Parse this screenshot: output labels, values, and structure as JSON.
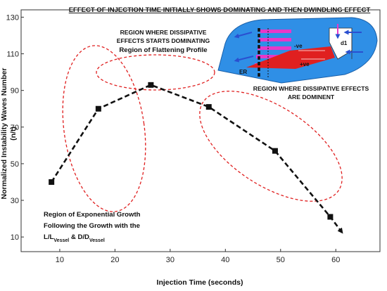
{
  "chart_data": {
    "type": "line",
    "title": "EFFECT OF INJECTION TIME INITIALLY SHOWS DOMINATING AND THEN DWINDLING EFFECT",
    "xlabel": "Injection Time (seconds)",
    "ylabel_line1": "Normalized Instability Waves Number",
    "ylabel_line2": "(n/t)",
    "xlim": [
      3,
      68
    ],
    "ylim": [
      2,
      134
    ],
    "x_ticks": [
      10,
      20,
      30,
      40,
      50,
      60
    ],
    "y_ticks": [
      10,
      30,
      50,
      70,
      90,
      110,
      130
    ],
    "grid": false,
    "legend": "none",
    "series": [
      {
        "x": [
          8.5,
          17,
          26.5,
          37,
          49,
          59,
          61
        ],
        "y": [
          40,
          80,
          93,
          81,
          57,
          21,
          13
        ],
        "color": "#111111",
        "line_style": "dashed",
        "marker": "square",
        "end_marker": "arrow"
      }
    ],
    "annotations": {
      "growth_lines": [
        "Region of Exponential Growth",
        "Following the Growth with the"
      ],
      "growth_ratio_a_main": "L/L",
      "growth_ratio_a_sub": "Vessel",
      "growth_ratio_join": " & D/D",
      "growth_ratio_b_sub": "Vessel",
      "flattening_lines": [
        "REGION WHERE DISSIPATIVE",
        "EFFECTS STARTS DOMINATING",
        "Region of Flattening Profile"
      ],
      "dominant_lines": [
        "REGION WHERE DISSIPATIVE EFFECTS",
        "ARE DOMINENT"
      ]
    },
    "ellipse_color": "#e02020",
    "inset": {
      "colors": {
        "body": "#2f8fe6",
        "stripes": "#e838c8",
        "jet": "#e02020",
        "arrows": "#2a4fd0"
      },
      "labels": [
        "-ve",
        "+ve",
        "d1",
        "ER"
      ]
    }
  }
}
